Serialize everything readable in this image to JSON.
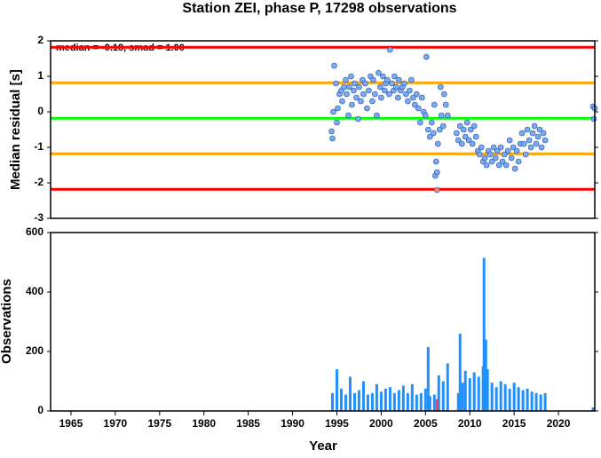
{
  "chart_data": [
    {
      "type": "scatter",
      "title": "Station ZEI, phase P, 17298 observations",
      "y_label": "Median residual [s]",
      "annotation": "median = -0.18, smad = 1.00",
      "xlim": [
        1962.7,
        2024.1
      ],
      "ylim": [
        -3,
        2
      ],
      "yticks": [
        -3,
        -2,
        -1,
        0,
        1,
        2
      ],
      "color": "#7aa9f5",
      "lines": [
        {
          "value": 1.82,
          "color": "#ff0000"
        },
        {
          "value": 0.82,
          "color": "#ffa500"
        },
        {
          "value": -0.18,
          "color": "#00ff00"
        },
        {
          "value": -1.18,
          "color": "#ffa500"
        },
        {
          "value": -2.18,
          "color": "#ff0000"
        }
      ],
      "x": [
        1994.4,
        1994.5,
        1994.6,
        1994.7,
        1994.9,
        1995.0,
        1995.1,
        1995.3,
        1995.5,
        1995.6,
        1995.8,
        1996.0,
        1996.1,
        1996.3,
        1996.4,
        1996.6,
        1996.7,
        1996.9,
        1997.0,
        1997.2,
        1997.4,
        1997.5,
        1997.7,
        1997.9,
        1998.0,
        1998.2,
        1998.4,
        1998.6,
        1998.8,
        1999.0,
        1999.1,
        1999.3,
        1999.5,
        1999.7,
        1999.9,
        2000.0,
        2000.2,
        2000.4,
        2000.5,
        2000.7,
        2000.9,
        2001.0,
        2001.2,
        2001.4,
        2001.5,
        2001.7,
        2001.9,
        2002.0,
        2002.2,
        2002.4,
        2002.6,
        2002.8,
        2003.0,
        2003.2,
        2003.4,
        2003.6,
        2003.8,
        2004.0,
        2004.2,
        2004.4,
        2004.6,
        2004.8,
        2005.0,
        2005.1,
        2005.3,
        2005.5,
        2005.7,
        2005.9,
        2006.0,
        2006.1,
        2006.2,
        2006.3,
        2006.4,
        2006.6,
        2006.7,
        2006.8,
        2007.0,
        2007.1,
        2007.3,
        2007.5,
        2008.5,
        2008.7,
        2008.9,
        2009.1,
        2009.3,
        2009.5,
        2009.7,
        2009.9,
        2010.1,
        2010.3,
        2010.5,
        2010.7,
        2010.9,
        2011.1,
        2011.3,
        2011.5,
        2011.7,
        2011.9,
        2012.1,
        2012.3,
        2012.5,
        2012.7,
        2012.9,
        2013.1,
        2013.3,
        2013.5,
        2013.7,
        2013.9,
        2014.1,
        2014.3,
        2014.5,
        2014.7,
        2014.9,
        2015.1,
        2015.3,
        2015.5,
        2015.7,
        2015.9,
        2016.1,
        2016.3,
        2016.5,
        2016.7,
        2016.9,
        2017.1,
        2017.3,
        2017.5,
        2017.7,
        2017.9,
        2018.1,
        2018.3,
        2018.5,
        2023.9,
        2024.0,
        2024.1
      ],
      "values": [
        -0.55,
        -0.75,
        0.0,
        1.3,
        0.8,
        -0.3,
        0.1,
        0.5,
        0.6,
        0.3,
        0.7,
        0.9,
        0.5,
        -0.1,
        0.7,
        1.0,
        0.2,
        0.6,
        0.8,
        0.4,
        -0.2,
        0.7,
        0.3,
        0.9,
        0.5,
        0.8,
        0.1,
        0.6,
        1.0,
        0.3,
        0.9,
        0.5,
        -0.1,
        1.1,
        0.7,
        0.4,
        1.0,
        0.6,
        0.8,
        0.9,
        0.5,
        1.75,
        0.8,
        0.6,
        1.0,
        0.7,
        0.4,
        0.9,
        0.6,
        0.7,
        0.8,
        0.5,
        0.3,
        0.6,
        0.9,
        0.4,
        0.2,
        0.5,
        0.1,
        -0.3,
        0.4,
        0.0,
        -0.1,
        1.55,
        -0.5,
        -0.7,
        -0.3,
        -0.6,
        0.2,
        -1.8,
        -1.4,
        -1.7,
        -0.9,
        -0.5,
        0.7,
        -0.1,
        -0.4,
        0.5,
        0.2,
        -0.1,
        -0.6,
        -0.8,
        -0.4,
        -0.9,
        -0.5,
        -0.7,
        -0.3,
        -0.8,
        -0.5,
        -0.9,
        -0.4,
        -0.7,
        -1.1,
        -1.2,
        -1.0,
        -1.4,
        -1.3,
        -1.5,
        -1.1,
        -1.2,
        -1.4,
        -1.0,
        -1.3,
        -1.1,
        -1.5,
        -1.0,
        -1.4,
        -1.2,
        -1.5,
        -1.1,
        -0.8,
        -1.3,
        -1.0,
        -1.6,
        -1.1,
        -1.4,
        -0.9,
        -0.6,
        -0.9,
        -1.2,
        -0.5,
        -0.8,
        -1.0,
        -0.6,
        -0.4,
        -0.9,
        -0.7,
        -0.5,
        -1.0,
        -0.6,
        -0.8,
        0.15,
        -0.2,
        0.1
      ],
      "outliers": {
        "x": [
          2006.3
        ],
        "values": [
          -2.2
        ],
        "color": "#f08080"
      }
    },
    {
      "type": "bar",
      "x_label": "Year",
      "y_label": "Observations",
      "xlim": [
        1962.7,
        2024.1
      ],
      "ylim": [
        0,
        600
      ],
      "yticks": [
        0,
        200,
        400,
        600
      ],
      "xticks": [
        1965,
        1970,
        1975,
        1980,
        1985,
        1990,
        1995,
        2000,
        2005,
        2010,
        2015,
        2020
      ],
      "color": "#1e90ff",
      "x": [
        1994.5,
        1995,
        1995.5,
        1996,
        1996.5,
        1997,
        1997.5,
        1998,
        1998.5,
        1999,
        1999.5,
        2000,
        2000.5,
        2001,
        2001.5,
        2002,
        2002.5,
        2003,
        2003.5,
        2004,
        2004.5,
        2005,
        2005.3,
        2005.5,
        2006,
        2006.5,
        2007,
        2007.5,
        2008.7,
        2008.9,
        2009.2,
        2009.5,
        2010,
        2010.5,
        2011,
        2011.5,
        2011.6,
        2011.8,
        2012,
        2012.5,
        2013,
        2013.5,
        2014,
        2014.5,
        2015,
        2015.5,
        2016,
        2016.5,
        2017,
        2017.5,
        2018,
        2018.5,
        2023.9
      ],
      "values": [
        60,
        140,
        75,
        55,
        115,
        60,
        70,
        100,
        55,
        60,
        90,
        65,
        75,
        80,
        60,
        70,
        85,
        60,
        90,
        55,
        60,
        75,
        215,
        50,
        55,
        120,
        100,
        160,
        60,
        260,
        95,
        135,
        110,
        130,
        115,
        150,
        515,
        240,
        140,
        95,
        80,
        100,
        90,
        75,
        95,
        80,
        70,
        75,
        65,
        60,
        55,
        60,
        12
      ],
      "extra": {
        "x": [
          2006.3
        ],
        "values": [
          40
        ],
        "color": "#ff4040"
      }
    }
  ]
}
